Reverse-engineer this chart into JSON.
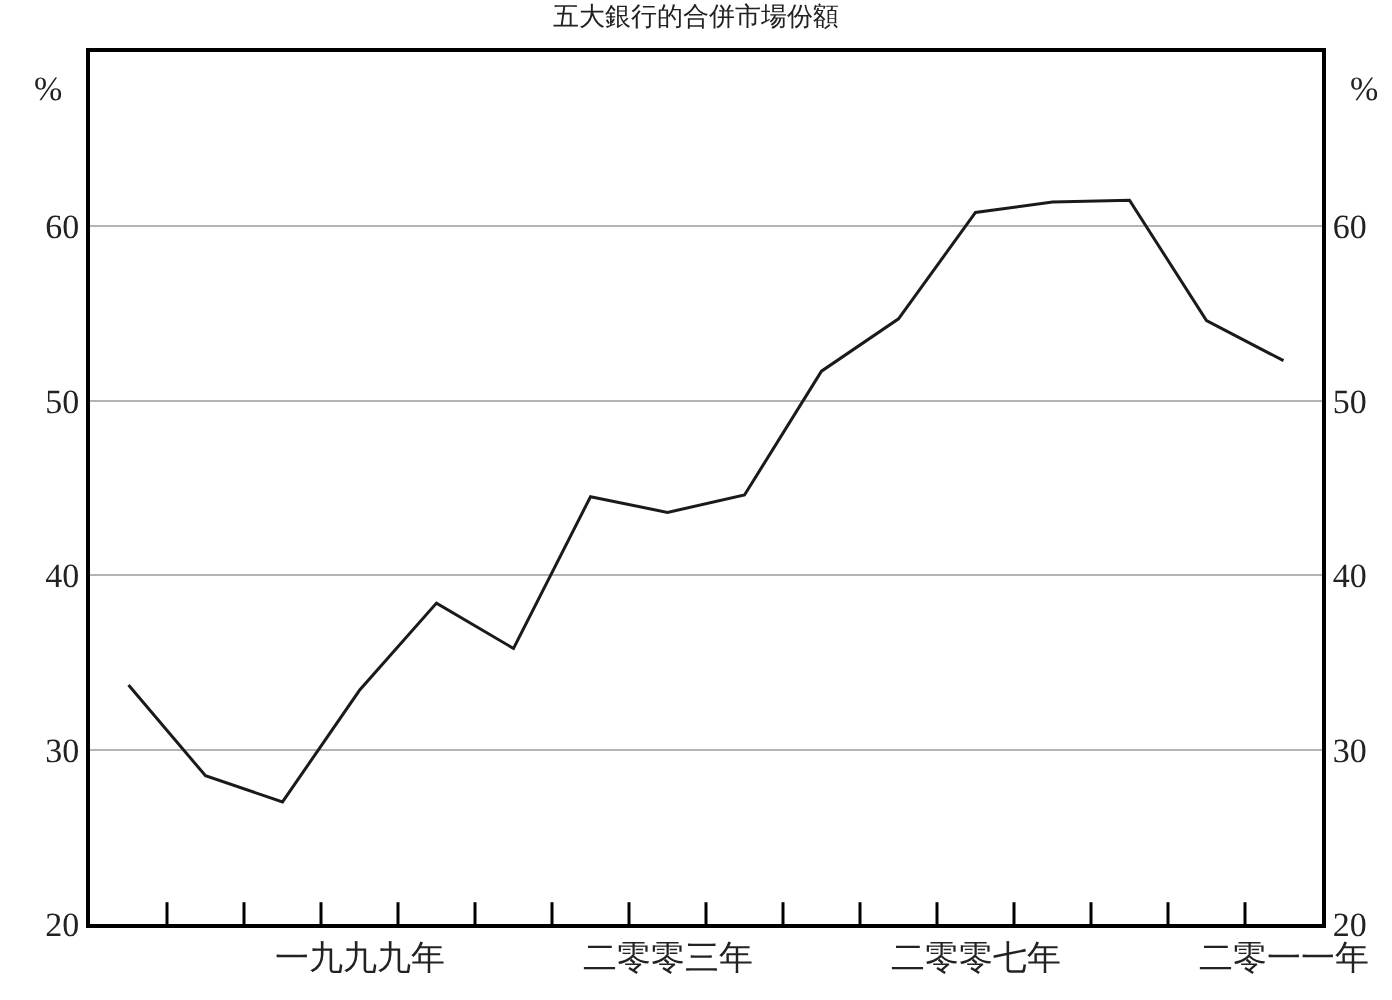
{
  "chart_data": {
    "type": "line",
    "title": "五大銀行的合併市場份額",
    "ylabel": "%",
    "y2label": "%",
    "categories": [
      null,
      null,
      null,
      "一九九九年",
      null,
      null,
      null,
      "二零零三年",
      null,
      null,
      null,
      "二零零七年",
      null,
      null,
      null,
      "二零一一年"
    ],
    "series": [
      {
        "color": "#1a1a1a",
        "values": [
          33.7,
          28.5,
          27.0,
          33.4,
          38.4,
          35.8,
          44.5,
          43.6,
          44.6,
          51.7,
          54.7,
          60.8,
          61.4,
          61.5,
          54.6,
          52.3
        ]
      }
    ],
    "ylim": [
      20,
      70
    ],
    "yticks": [
      20,
      30,
      40,
      50,
      60
    ],
    "y2lim": [
      20,
      70
    ],
    "y2ticks": [
      20,
      30,
      40,
      50,
      60
    ],
    "grid": "y",
    "marker": "none",
    "line_style": "solid"
  }
}
